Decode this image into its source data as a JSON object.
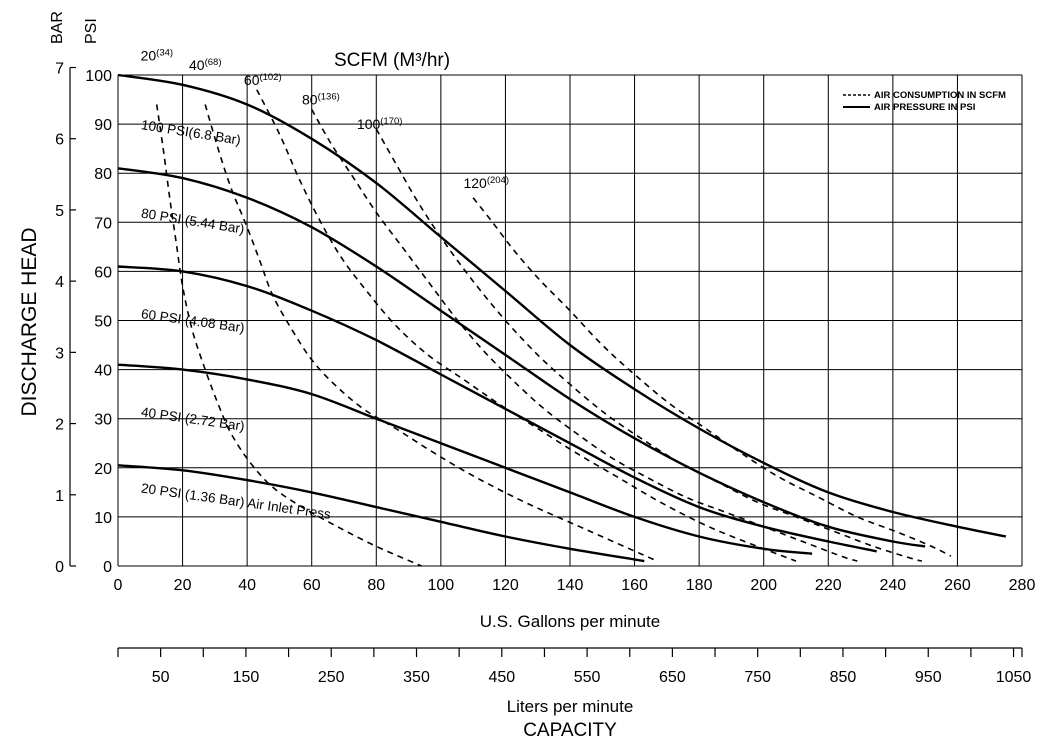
{
  "chart_data": {
    "type": "line",
    "title": "SCFM (M³/hr)",
    "ylabel": "DISCHARGE HEAD",
    "xlabel": "U.S. Gallons per minute",
    "x2label": "Liters per minute",
    "bottom_label": "CAPACITY",
    "ylabel_bar_unit": "BAR",
    "ylabel_psi_unit": "PSI",
    "xlim": [
      0,
      280
    ],
    "ylim": [
      0,
      100
    ],
    "grid": true,
    "legend_position": "top-right",
    "legend": [
      {
        "label": "AIR CONSUMPTION IN SCFM",
        "style": "dashed"
      },
      {
        "label": "AIR PRESSURE IN PSI",
        "style": "solid"
      }
    ],
    "x_ticks": [
      0,
      20,
      40,
      60,
      80,
      100,
      120,
      140,
      160,
      180,
      200,
      220,
      240,
      260,
      280
    ],
    "y_psi_ticks": [
      0,
      10,
      20,
      30,
      40,
      50,
      60,
      70,
      80,
      90,
      100
    ],
    "y_bar_ticks": [
      0,
      1,
      2,
      3,
      4,
      5,
      6,
      7
    ],
    "liters_ticks": [
      50,
      150,
      250,
      350,
      450,
      550,
      650,
      750,
      850,
      950,
      1050
    ],
    "pressure_series": [
      {
        "name": "100 PSI(6.8 Bar)",
        "x": [
          0,
          20,
          40,
          60,
          80,
          100,
          120,
          140,
          160,
          180,
          200,
          220,
          240,
          260,
          275
        ],
        "y": [
          100,
          98,
          94,
          87,
          78,
          67,
          56,
          45,
          36,
          28,
          21,
          15,
          11,
          8,
          6
        ]
      },
      {
        "name": "80 PSI (5.44 Bar)",
        "x": [
          0,
          20,
          40,
          60,
          80,
          100,
          120,
          140,
          160,
          180,
          200,
          220,
          240,
          250
        ],
        "y": [
          81,
          79,
          75,
          69,
          61,
          52,
          43,
          34,
          26,
          19,
          13,
          8,
          5,
          4
        ]
      },
      {
        "name": "60 PSI (4.08 Bar)",
        "x": [
          0,
          20,
          40,
          60,
          80,
          100,
          120,
          140,
          160,
          180,
          200,
          220,
          235
        ],
        "y": [
          61,
          60,
          57,
          52,
          46,
          39,
          32,
          25,
          18,
          12,
          8,
          5,
          3
        ]
      },
      {
        "name": "40 PSI (2.72 Bar)",
        "x": [
          0,
          20,
          40,
          60,
          80,
          100,
          120,
          140,
          160,
          180,
          200,
          215
        ],
        "y": [
          41,
          40,
          38,
          35,
          30,
          25,
          20,
          15,
          10,
          6,
          3.5,
          2.5
        ]
      },
      {
        "name": "20 PSI (1.36 Bar) Air Inlet Press",
        "x": [
          0,
          20,
          40,
          60,
          80,
          100,
          120,
          140,
          163
        ],
        "y": [
          20.5,
          19.5,
          17.5,
          15,
          12,
          9,
          6,
          3.5,
          1
        ]
      }
    ],
    "air_series": [
      {
        "name": "20(34)",
        "x": [
          12,
          14,
          16,
          18,
          20,
          23,
          27,
          31,
          35,
          41,
          48,
          57,
          68,
          80,
          94
        ],
        "y": [
          94,
          85,
          75,
          66,
          57,
          48,
          40,
          33,
          27,
          21,
          16,
          12,
          8,
          4,
          0
        ]
      },
      {
        "name": "40(68)",
        "x": [
          27,
          31,
          35,
          40,
          44,
          48,
          54,
          60,
          67,
          76,
          86,
          98,
          111,
          126,
          143,
          167
        ],
        "y": [
          94,
          85,
          77,
          69,
          62,
          55,
          48,
          42,
          37,
          32,
          28,
          23,
          18,
          13,
          8,
          1
        ]
      },
      {
        "name": "60(102)",
        "x": [
          43,
          50,
          56,
          62,
          69,
          77,
          86,
          96,
          107,
          118,
          130,
          142,
          155,
          168,
          183,
          198,
          210
        ],
        "y": [
          97,
          88,
          79,
          71,
          63,
          56,
          49,
          43,
          38,
          33,
          28,
          23,
          18,
          13,
          8,
          4,
          1
        ]
      },
      {
        "name": "80(136)",
        "x": [
          60,
          66,
          73,
          80,
          88,
          96,
          104,
          113,
          122,
          132,
          142,
          153,
          164,
          176,
          188,
          200,
          212,
          224,
          229
        ],
        "y": [
          93,
          86,
          79,
          72,
          65,
          58,
          51,
          44,
          38,
          32,
          27,
          22,
          18,
          14,
          11,
          8,
          5,
          2,
          1
        ]
      },
      {
        "name": "100(170)",
        "x": [
          80,
          86,
          93,
          101,
          110,
          120,
          130,
          140,
          151,
          162,
          174,
          186,
          198,
          210,
          222,
          234,
          246,
          249
        ],
        "y": [
          89,
          82,
          74,
          66,
          58,
          50,
          43,
          37,
          31,
          26,
          21,
          17,
          13,
          10,
          7,
          4,
          1.5,
          1
        ]
      },
      {
        "name": "120(204)",
        "x": [
          110,
          116,
          123,
          131,
          140,
          150,
          160,
          171,
          182,
          193,
          205,
          217,
          229,
          241,
          252,
          258
        ],
        "y": [
          75,
          70,
          64,
          58,
          52,
          45,
          39,
          33,
          28,
          23,
          18,
          14,
          10,
          7,
          4,
          2
        ]
      }
    ],
    "pressure_labels": [
      {
        "text": "100 PSI(6.8 Bar)",
        "x": 7,
        "y": 89,
        "angle": 9
      },
      {
        "text": "80 PSI (5.44 Bar)",
        "x": 7,
        "y": 71,
        "angle": 9
      },
      {
        "text": "60 PSI (4.08 Bar)",
        "x": 7,
        "y": 50.5,
        "angle": 8
      },
      {
        "text": "40 PSI (2.72 Bar)",
        "x": 7,
        "y": 30.5,
        "angle": 8
      },
      {
        "text": "20 PSI (1.36 Bar) Air Inlet Press",
        "x": 7,
        "y": 15,
        "angle": 8
      }
    ],
    "air_labels": [
      {
        "main": "20",
        "sup": "(34)",
        "x": 7,
        "y": 103
      },
      {
        "main": "40",
        "sup": "(68)",
        "x": 22,
        "y": 101
      },
      {
        "main": "60",
        "sup": "(102)",
        "x": 39,
        "y": 98
      },
      {
        "main": "80",
        "sup": "(136)",
        "x": 57,
        "y": 94
      },
      {
        "main": "100",
        "sup": "(170)",
        "x": 74,
        "y": 89
      },
      {
        "main": "120",
        "sup": "(204)",
        "x": 107,
        "y": 77
      }
    ]
  }
}
